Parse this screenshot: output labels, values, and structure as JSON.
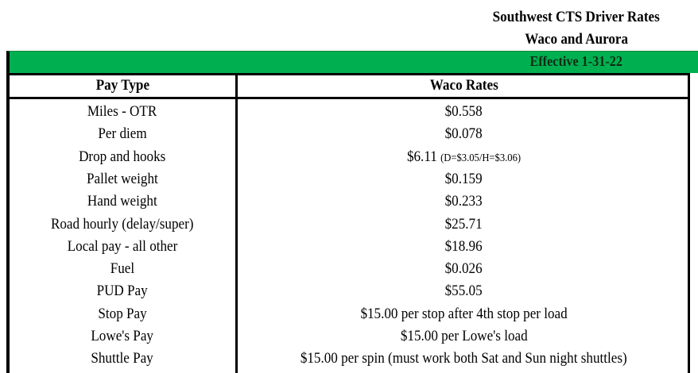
{
  "title": "Southwest CTS Driver Rates",
  "subtitle": "Waco and Aurora",
  "effective": "Effective 1-31-22",
  "colors": {
    "banner": "#00b050"
  },
  "table": {
    "headers": [
      "Pay Type",
      "Waco Rates"
    ],
    "rows": [
      {
        "type": "Miles - OTR",
        "rate": "$0.558",
        "note": ""
      },
      {
        "type": "Per diem",
        "rate": "$0.078",
        "note": ""
      },
      {
        "type": "Drop and hooks",
        "rate": "$6.11",
        "note": "(D=$3.05/H=$3.06)"
      },
      {
        "type": "Pallet weight",
        "rate": "$0.159",
        "note": ""
      },
      {
        "type": "Hand weight",
        "rate": "$0.233",
        "note": ""
      },
      {
        "type": "Road hourly (delay/super)",
        "rate": "$25.71",
        "note": ""
      },
      {
        "type": "Local pay - all other",
        "rate": "$18.96",
        "note": ""
      },
      {
        "type": "Fuel",
        "rate": "$0.026",
        "note": ""
      },
      {
        "type": "PUD  Pay",
        "rate": "$55.05",
        "note": ""
      },
      {
        "type": "Stop Pay",
        "rate": "$15.00 per stop after 4th stop per load",
        "note": ""
      },
      {
        "type": "Lowe's Pay",
        "rate": "$15.00 per Lowe's load",
        "note": ""
      },
      {
        "type": "Shuttle Pay",
        "rate": "$15.00 per spin (must work both Sat and Sun night shuttles)",
        "note": ""
      }
    ]
  }
}
